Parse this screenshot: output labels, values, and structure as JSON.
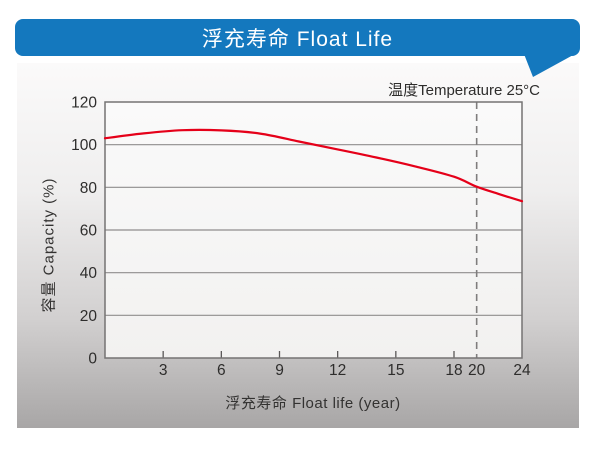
{
  "banner": {
    "title": "浮充寿命 Float Life",
    "color": "#1478be"
  },
  "chart_data": {
    "type": "line",
    "title": "浮充寿命 Float Life",
    "xlabel": "浮充寿命 Float life (year)",
    "ylabel": "容量 Capacity (%)",
    "annotation": "温度Temperature 25°C",
    "xlim": [
      0,
      24
    ],
    "ylim": [
      0,
      120
    ],
    "x_ticks": [
      3,
      6,
      9,
      12,
      15,
      18,
      20,
      24
    ],
    "x_tick_marks": [
      3,
      6,
      9,
      12,
      15,
      18
    ],
    "y_ticks": [
      0,
      20,
      40,
      60,
      80,
      100,
      120
    ],
    "grid": true,
    "gridline_values": [
      20,
      40,
      60,
      80,
      100
    ],
    "reference_line_x": 20,
    "series": [
      {
        "name": "capacity",
        "color": "#e50019",
        "x": [
          0,
          2,
          4,
          6,
          8,
          10,
          12,
          14,
          16,
          18,
          20,
          22,
          24
        ],
        "y": [
          103,
          105.3,
          106.8,
          106.7,
          105.2,
          101.5,
          97.8,
          94,
          89.8,
          85,
          80.3,
          76.8,
          73.5
        ]
      }
    ],
    "colors": {
      "grid": "#8f8d8d",
      "border": "#757373",
      "tick_text": "#2e2d2c",
      "dashed_line": "#7f7d7d",
      "plot_bg_top": "#fafafa",
      "plot_bg_bottom": "#f2f1f0"
    }
  }
}
